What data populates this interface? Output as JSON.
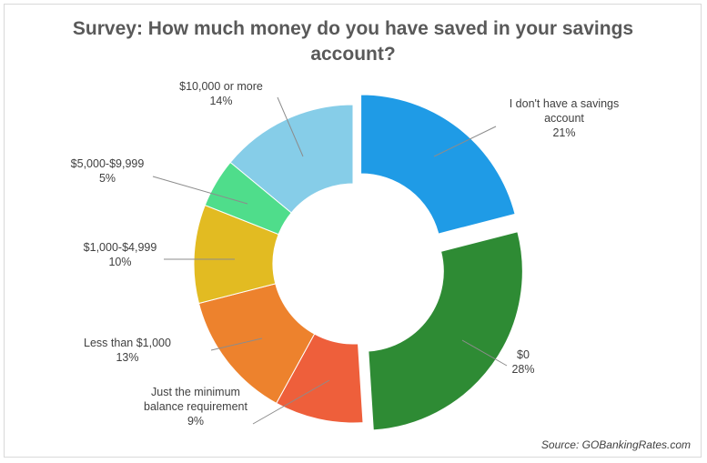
{
  "chart_data": {
    "type": "pie",
    "variant": "donut",
    "title_lines": [
      "Survey: How much money do you have saved in your savings",
      "account?"
    ],
    "source": "Source: GOBankingRates.com",
    "slices": [
      {
        "label_lines": [
          "I don't have a savings",
          "account"
        ],
        "value": 21,
        "value_label": "21%",
        "color": "#1f9be6",
        "exploded": true
      },
      {
        "label_lines": [
          "$0"
        ],
        "value": 28,
        "value_label": "28%",
        "color": "#2e8b34",
        "exploded": true
      },
      {
        "label_lines": [
          "Just the minimum",
          "balance requirement"
        ],
        "value": 9,
        "value_label": "9%",
        "color": "#ee5f3b",
        "exploded": false
      },
      {
        "label_lines": [
          "Less than $1,000"
        ],
        "value": 13,
        "value_label": "13%",
        "color": "#ed822d",
        "exploded": false
      },
      {
        "label_lines": [
          "$1,000-$4,999"
        ],
        "value": 10,
        "value_label": "10%",
        "color": "#e2bb22",
        "exploded": false
      },
      {
        "label_lines": [
          "$5,000-$9,999"
        ],
        "value": 5,
        "value_label": "5%",
        "color": "#4fdd8b",
        "exploded": false
      },
      {
        "label_lines": [
          "$10,000 or more"
        ],
        "value": 14,
        "value_label": "14%",
        "color": "#86cde8",
        "exploded": false
      }
    ]
  }
}
